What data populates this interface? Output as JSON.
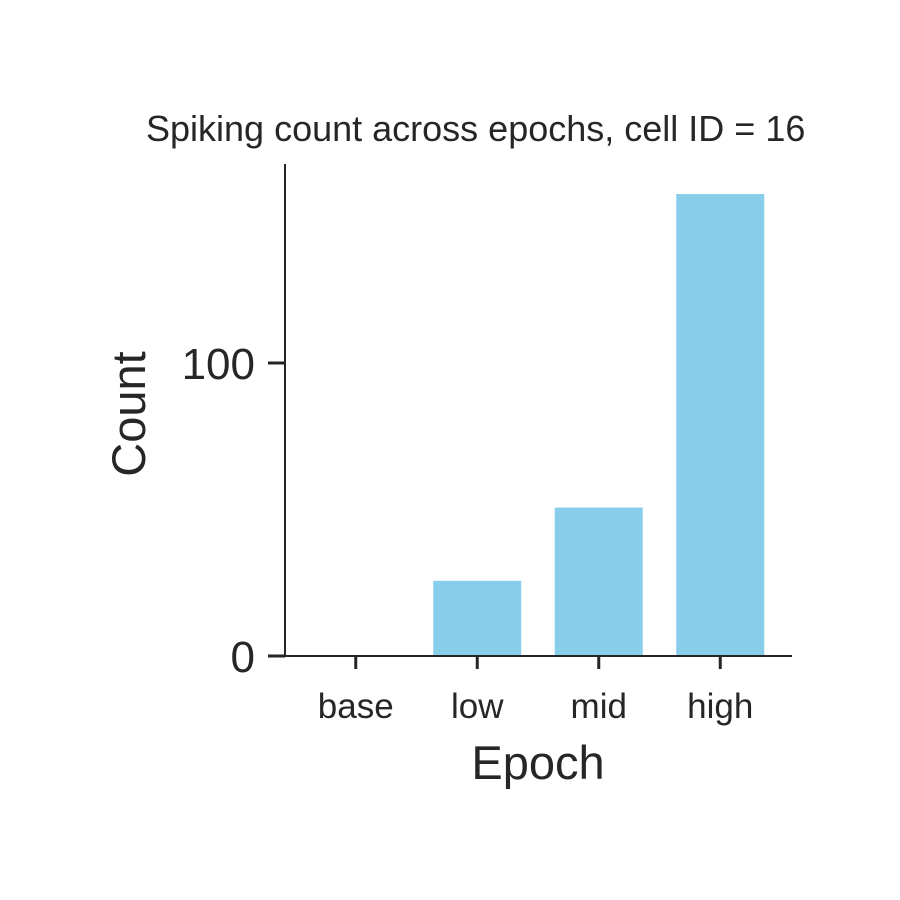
{
  "chart_data": {
    "type": "bar",
    "title": "Spiking count across epochs, cell ID = 16",
    "xlabel": "Epoch",
    "ylabel": "Count",
    "categories": [
      "base",
      "low",
      "mid",
      "high"
    ],
    "values": [
      0,
      26,
      51,
      158
    ],
    "ylim": [
      0,
      166
    ],
    "yticks": [
      0,
      100
    ],
    "grid": false,
    "legend": "none",
    "bar_color": "#87CEEB",
    "axis_color": "#262626"
  }
}
